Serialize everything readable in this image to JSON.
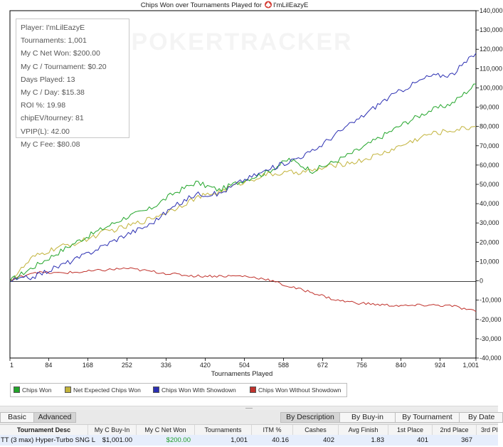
{
  "chart_data": {
    "type": "line",
    "title": "Chips Won over Tournaments Played for",
    "player_name": "I'mLilEazyE",
    "xlabel": "Tournaments Played",
    "ylabel": "",
    "xlim": [
      1,
      1001
    ],
    "ylim": [
      -40000,
      140000
    ],
    "x_ticks": [
      1,
      84,
      168,
      252,
      336,
      420,
      504,
      588,
      672,
      756,
      840,
      924,
      1001
    ],
    "x_tick_labels": [
      "1",
      "84",
      "168",
      "252",
      "336",
      "420",
      "504",
      "588",
      "672",
      "756",
      "840",
      "924",
      "1,001"
    ],
    "y_ticks": [
      -40000,
      -30000,
      -20000,
      -10000,
      0,
      10000,
      20000,
      30000,
      40000,
      50000,
      60000,
      70000,
      80000,
      90000,
      100000,
      110000,
      120000,
      130000,
      140000
    ],
    "y_tick_labels": [
      "-40,000",
      "-30,000",
      "-20,000",
      "-10,000",
      "0",
      "10,000",
      "20,000",
      "30,000",
      "40,000",
      "50,000",
      "60,000",
      "70,000",
      "80,000",
      "90,000",
      "100,000",
      "110,000",
      "120,000",
      "130,000",
      "140,000"
    ],
    "grid": false,
    "legend_position": "bottom",
    "x": [
      1,
      50,
      100,
      150,
      200,
      250,
      300,
      350,
      400,
      450,
      500,
      550,
      600,
      650,
      700,
      750,
      800,
      850,
      900,
      950,
      1001
    ],
    "series": [
      {
        "name": "Chips Won",
        "color": "#22a52a",
        "values": [
          0,
          7000,
          14000,
          21000,
          27000,
          33000,
          37000,
          45000,
          51000,
          47000,
          52000,
          56000,
          63000,
          57000,
          62000,
          68000,
          75000,
          82000,
          88000,
          92000,
          102000
        ]
      },
      {
        "name": "Net Expected Chips Won",
        "color": "#c2b33b",
        "values": [
          0,
          12000,
          17000,
          20000,
          25000,
          28000,
          32000,
          37000,
          43000,
          46000,
          51000,
          55000,
          56000,
          57000,
          60000,
          62000,
          66000,
          71000,
          76000,
          78000,
          80000
        ]
      },
      {
        "name": "Chips Won With Showdown",
        "color": "#2b2fb2",
        "values": [
          0,
          2000,
          7000,
          12000,
          18000,
          24000,
          29000,
          38000,
          45000,
          45000,
          52000,
          57000,
          62000,
          67000,
          76000,
          84000,
          93000,
          100000,
          106000,
          107000,
          118000
        ]
      },
      {
        "name": "Chips Won Without Showdown",
        "color": "#c0322c",
        "values": [
          0,
          4500,
          4000,
          4500,
          5500,
          6500,
          5000,
          3500,
          2500,
          2500,
          2500,
          1000,
          -3000,
          -6000,
          -10000,
          -11500,
          -12500,
          -13000,
          -12500,
          -13000,
          -16000
        ]
      }
    ]
  },
  "watermark": "POKERTRACKER",
  "stats_box": {
    "lines": [
      "Player: I'mLilEazyE",
      "Tournaments: 1,001",
      "My C Net Won: $200.00",
      "My C / Tournament: $0.20",
      "Days Played: 13",
      "My C / Day: $15.38",
      "ROI %: 19.98",
      "chipEV/tourney: 81",
      "VPIP(L): 42.00",
      "My C Fee: $80.08"
    ]
  },
  "view_tabs": [
    "Basic",
    "Advanced"
  ],
  "group_tabs": [
    "By Description",
    "By Buy-in",
    "By Tournament",
    "By Date"
  ],
  "table": {
    "columns": [
      "Tournament Desc",
      "My C Buy-In",
      "My C Net Won",
      "Tournaments",
      "ITM %",
      "Cashes",
      "Avg Finish",
      "1st Place",
      "2nd Place",
      "3rd Pl"
    ],
    "rows": [
      [
        "TT (3 max) Hyper-Turbo SNG L",
        "$1,001.00",
        "$200.00",
        "1,001",
        "40.16",
        "402",
        "1.83",
        "401",
        "367",
        ""
      ]
    ],
    "positive_color": "#1e9d2a"
  }
}
